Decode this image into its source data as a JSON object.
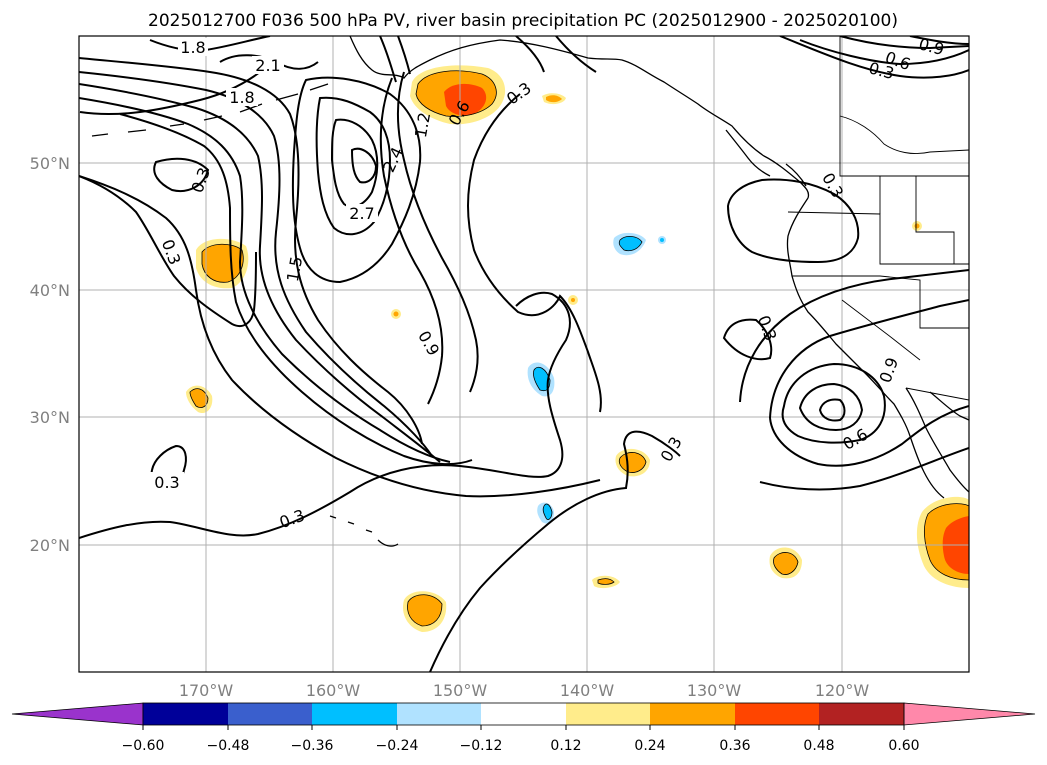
{
  "title": "2025012700 F036 500 hPa PV, river basin precipitation PC (2025012900 - 2025020100)",
  "lon_ticks": [
    "170°W",
    "160°W",
    "150°W",
    "140°W",
    "130°W",
    "120°W"
  ],
  "lat_ticks": [
    "50°N",
    "40°N",
    "30°N",
    "20°N"
  ],
  "contour_labels": [
    "1.8",
    "2.1",
    "1.8",
    "0.3",
    "0.3",
    "1.5",
    "2.7",
    "2.4",
    "1.2",
    "0.6",
    "0.3",
    "0.9",
    "0.3",
    "0.3",
    "0.3",
    "0.9",
    "0.6",
    "0.3",
    "0.3",
    "0.6",
    "0.9",
    "0.3"
  ],
  "colorbar": {
    "tick_labels": [
      "−0.60",
      "−0.48",
      "−0.36",
      "−0.24",
      "−0.12",
      "0.12",
      "0.24",
      "0.36",
      "0.48",
      "0.60"
    ],
    "colors": [
      "#9a33cc",
      "#000099",
      "#3a5fcd",
      "#00bfff",
      "#b0e2ff",
      "#ffffff",
      "#ffec8b",
      "#ffa500",
      "#ff4500",
      "#b22222",
      "#ff88aa"
    ]
  },
  "palette": {
    "land_line": "#000000",
    "grid": "#b0b0b0",
    "contour": "#000000"
  }
}
